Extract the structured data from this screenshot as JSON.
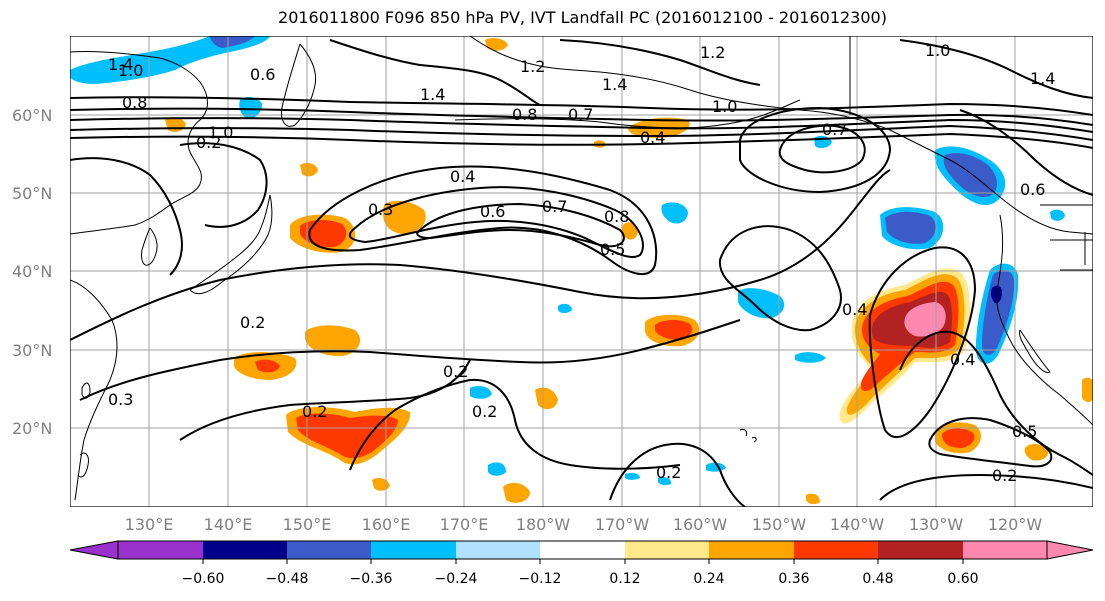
{
  "title": "2016011800 F096 850 hPa PV, IVT Landfall PC (2016012100 - 2016012300)",
  "map": {
    "lat_labels": [
      "60°N",
      "50°N",
      "40°N",
      "30°N",
      "20°N"
    ],
    "lon_labels": [
      "130°E",
      "140°E",
      "150°E",
      "160°E",
      "170°E",
      "180°W",
      "170°W",
      "160°W",
      "150°W",
      "140°W",
      "130°W",
      "120°W"
    ],
    "grid": true,
    "grid_color": "#a0a0a0",
    "coastline_color": "#000000",
    "contour_color": "#000000",
    "contour_labels": [
      "1.4",
      "1.0",
      "0.8",
      "1.2",
      "1.4",
      "1.0",
      "0.8",
      "0.7",
      "0.4",
      "1.4",
      "1.0",
      "0.7",
      "0.4",
      "0.3",
      "0.6",
      "0.7",
      "0.8",
      "0.5",
      "0.4",
      "0.2",
      "0.3",
      "0.2",
      "0.2",
      "0.2",
      "0.2",
      "0.4",
      "0.2",
      "0.5",
      "0.2",
      "1.2",
      "0.6",
      "1.4",
      "1.0",
      "0.6"
    ],
    "shaded_regions": [
      {
        "name": "pink-max-anomaly",
        "color": "#ff88b0"
      },
      {
        "name": "darkred-anomaly",
        "color": "#b22222"
      },
      {
        "name": "red-anomaly",
        "color": "#ff3800"
      },
      {
        "name": "orange-anomaly",
        "color": "#ffa500"
      },
      {
        "name": "yellow-anomaly",
        "color": "#ffe98a"
      },
      {
        "name": "lightblue-anomaly",
        "color": "#b0e2ff"
      },
      {
        "name": "cyan-anomaly",
        "color": "#00bfff"
      },
      {
        "name": "blue-anomaly",
        "color": "#3a5bc8"
      },
      {
        "name": "navy-anomaly",
        "color": "#00008b"
      }
    ]
  },
  "colorbar": {
    "colors": [
      "#9932cc",
      "#00008b",
      "#3a5bc8",
      "#00bfff",
      "#b0e2ff",
      "#ffffff",
      "#ffe98a",
      "#ffa500",
      "#ff3800",
      "#b22222",
      "#ff88b0"
    ],
    "tick_labels": [
      "−0.60",
      "−0.48",
      "−0.36",
      "−0.24",
      "−0.12",
      "0.12",
      "0.24",
      "0.36",
      "0.48",
      "0.60"
    ],
    "extend": "both"
  }
}
